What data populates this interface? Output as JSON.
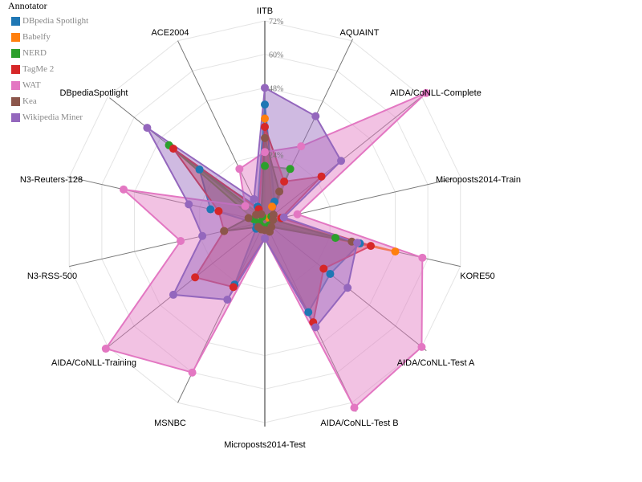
{
  "chart_data": {
    "type": "radar",
    "legend_title": "Annotator",
    "legend_position": "top-left",
    "axes": [
      "IITB",
      "AQUAINT",
      "AIDA/CoNLL-Complete",
      "Microposts2014-Train",
      "KORE50",
      "AIDA/CoNLL-Test A",
      "AIDA/CoNLL-Test B",
      "Microposts2014-Test",
      "MSNBC",
      "AIDA/CoNLL-Training",
      "N3-RSS-500",
      "N3-Reuters-128",
      "DBpediaSpotlight",
      "ACE2004"
    ],
    "ticks": [
      "24%",
      "48%",
      "60%",
      "72%"
    ],
    "tick_values": [
      24,
      48,
      60,
      72
    ],
    "rmax": 72,
    "grid": true,
    "series": [
      {
        "name": "DBpedia Spotlight",
        "color": "#1f77b4",
        "values": [
          42,
          8,
          2,
          3,
          35,
          30,
          36,
          6,
          25,
          4,
          3,
          20,
          30,
          6
        ]
      },
      {
        "name": "Babelfy",
        "color": "#ff7f0e",
        "values": [
          37,
          6,
          2,
          3,
          48,
          2,
          3,
          2,
          3,
          2,
          2,
          4,
          4,
          2
        ]
      },
      {
        "name": "NERD",
        "color": "#2ca02c",
        "values": [
          20,
          21,
          3,
          3,
          26,
          2,
          3,
          2,
          3,
          2,
          2,
          4,
          44,
          2
        ]
      },
      {
        "name": "TagMe 2",
        "color": "#d62728",
        "values": [
          34,
          16,
          26,
          6,
          39,
          27,
          40,
          6,
          26,
          32,
          15,
          17,
          42,
          5
        ]
      },
      {
        "name": "WAT",
        "color": "#e377c2",
        "values": [
          25,
          30,
          74,
          12,
          58,
          72,
          74,
          6,
          60,
          73,
          31,
          52,
          9,
          21
        ]
      },
      {
        "name": "Kea",
        "color": "#8c564b",
        "values": [
          30,
          12,
          4,
          3,
          32,
          3,
          4,
          3,
          3,
          3,
          15,
          6,
          4,
          3
        ]
      },
      {
        "name": "Wikipedia Miner",
        "color": "#9467bd",
        "values": [
          48,
          42,
          35,
          7,
          34,
          38,
          42,
          6,
          31,
          42,
          23,
          28,
          54,
          9
        ]
      }
    ]
  }
}
